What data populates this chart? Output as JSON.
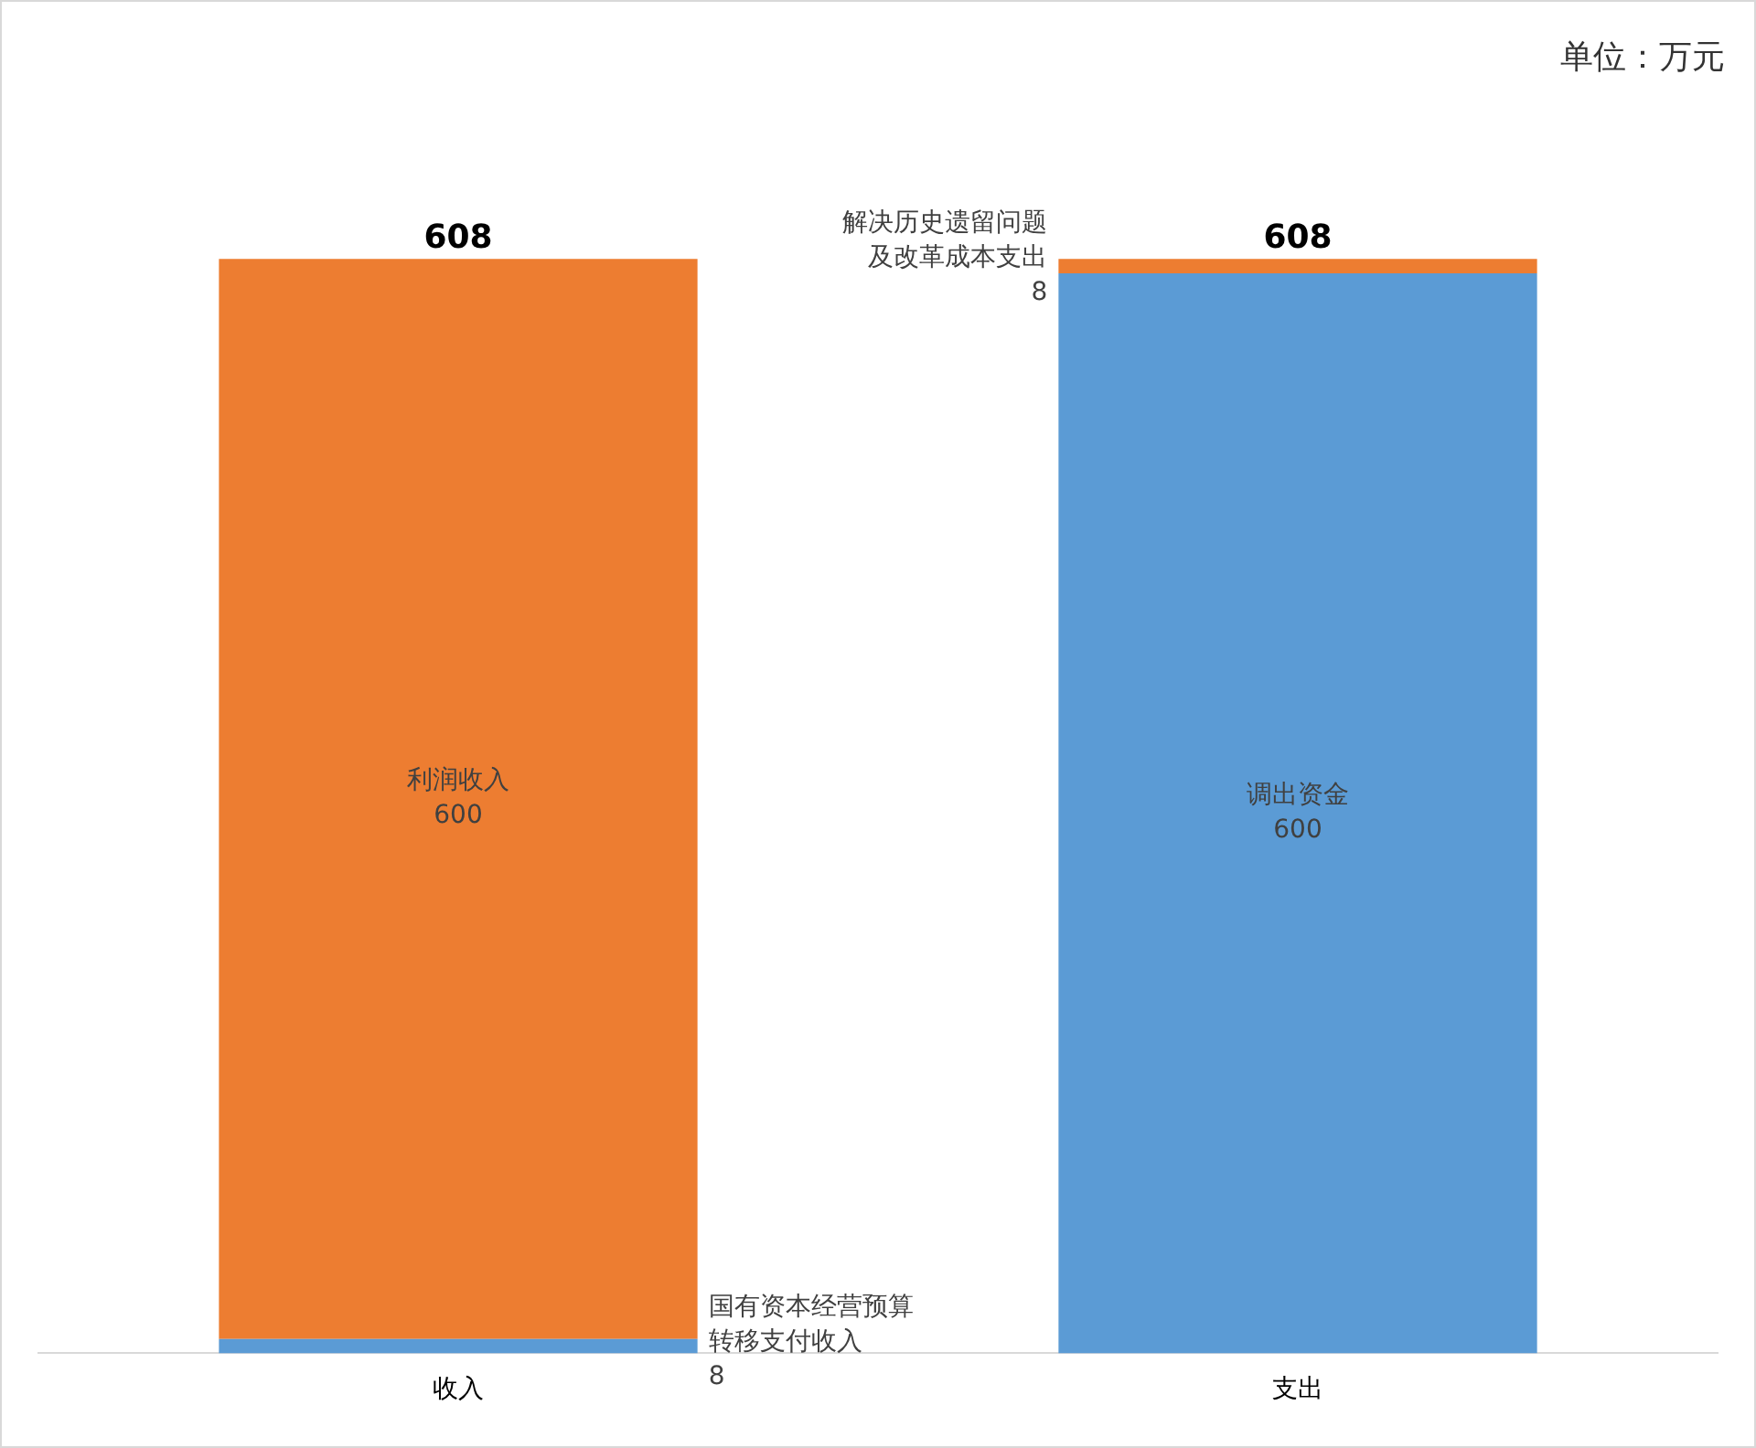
{
  "chart_data": {
    "type": "bar",
    "stacked": true,
    "categories": [
      "收入",
      "支出"
    ],
    "series": [
      {
        "name": "国有资本经营预算转移支付收入",
        "color": "#5b9bd5",
        "values": [
          8,
          null
        ],
        "value_labels": [
          "8",
          null
        ]
      },
      {
        "name": "调出资金",
        "color": "#5b9bd5",
        "values": [
          null,
          600
        ],
        "value_labels": [
          null,
          "600"
        ]
      },
      {
        "name": "利润收入",
        "color": "#ed7d31",
        "values": [
          600,
          null
        ],
        "value_labels": [
          "600",
          null
        ]
      },
      {
        "name": "解决历史遗留问题及改革成本支出",
        "color": "#ed7d31",
        "values": [
          null,
          8
        ],
        "value_labels": [
          null,
          "8"
        ]
      }
    ],
    "totals": [
      "608",
      "608"
    ],
    "legend": false,
    "grid": false,
    "annotations": [
      "单位：万元"
    ]
  }
}
